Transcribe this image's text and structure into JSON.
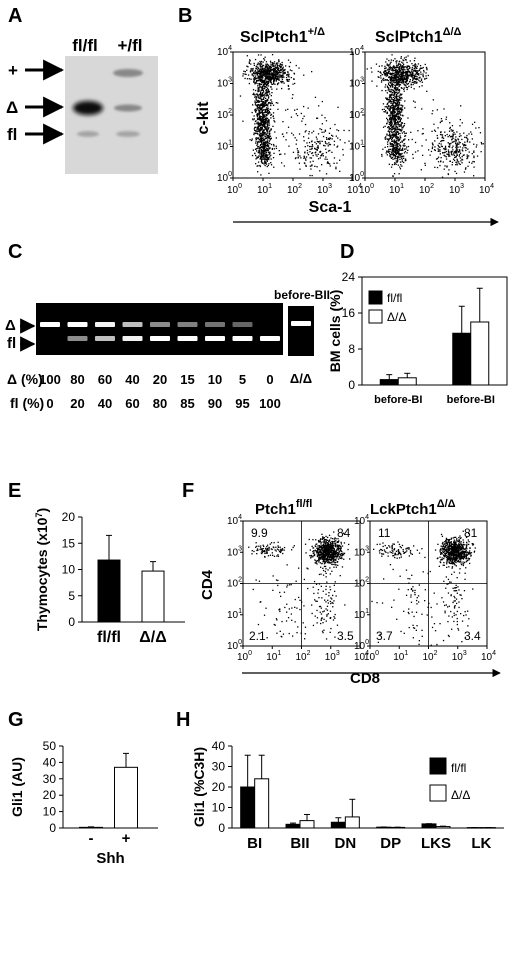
{
  "panel_letters": {
    "A": "A",
    "B": "B",
    "C": "C",
    "D": "D",
    "E": "E",
    "F": "F",
    "G": "G",
    "H": "H"
  },
  "panelA": {
    "lanes": [
      "fl/fl",
      "+/fl"
    ],
    "band_labels": [
      "+",
      "Δ",
      "fl"
    ]
  },
  "panelB": {
    "titles": [
      {
        "base": "SclPtch1",
        "sup": "+/Δ"
      },
      {
        "base": "SclPtch1",
        "sup": "Δ/Δ"
      }
    ],
    "ylabel": "c-kit",
    "xlabel": "Sca-1",
    "ticks": {
      "exp10": "10",
      "exps": [
        "0",
        "1",
        "2",
        "3",
        "4"
      ]
    }
  },
  "panelC": {
    "gel_labels": [
      "Δ",
      "fl"
    ],
    "extra_label": "before-BII",
    "extra_lane": "Δ/Δ",
    "row1_label": "Δ (%)",
    "row1": [
      "100",
      "80",
      "60",
      "40",
      "20",
      "15",
      "10",
      "5",
      "0"
    ],
    "row2_label": "fl (%)",
    "row2": [
      "0",
      "20",
      "40",
      "60",
      "80",
      "85",
      "90",
      "95",
      "100"
    ]
  },
  "panelF": {
    "titles": [
      {
        "base": "Ptch1",
        "sup": "fl/fl"
      },
      {
        "base": "LckPtch1",
        "sup": "Δ/Δ"
      }
    ],
    "ylabel": "CD4",
    "xlabel": "CD8",
    "quadrants": [
      {
        "ul": "9.9",
        "ur": "84",
        "ll": "2.1",
        "lr": "3.5"
      },
      {
        "ul": "11",
        "ur": "81",
        "ll": "3.7",
        "lr": "3.4"
      }
    ]
  },
  "chart_data": [
    {
      "panel": "D",
      "type": "bar",
      "ylabel": "BM cells (%)",
      "ylim": [
        0,
        24
      ],
      "yticks": [
        "0",
        "8",
        "16",
        "24"
      ],
      "categories": [
        "before-BI",
        "before-BI"
      ],
      "series": [
        {
          "name": "fl/fl",
          "values": [
            1.2,
            11.5
          ],
          "errors": [
            1.1,
            6
          ]
        },
        {
          "name": "Δ/Δ",
          "values": [
            1.6,
            14
          ],
          "errors": [
            1.0,
            7.5
          ]
        }
      ],
      "legend": "top-left"
    },
    {
      "panel": "E",
      "type": "bar",
      "ylabel": "Thymocytes (x10",
      "ylabel_sup": "7",
      "ylabel_end": ")",
      "ylim": [
        0,
        20
      ],
      "yticks": [
        "0",
        "5",
        "10",
        "15",
        "20"
      ],
      "categories": [
        "fl/fl",
        "Δ/Δ"
      ],
      "values": [
        11.8,
        9.7
      ],
      "errors": [
        4.7,
        1.8
      ]
    },
    {
      "panel": "G",
      "type": "bar",
      "ylabel": "Gli1 (AU)",
      "xlabel": "Shh",
      "ylim": [
        0,
        50
      ],
      "yticks": [
        "0",
        "10",
        "20",
        "30",
        "40",
        "50"
      ],
      "categories": [
        "-",
        "+"
      ],
      "values": [
        0.4,
        37
      ],
      "errors": [
        0.3,
        8.5
      ]
    },
    {
      "panel": "H",
      "type": "bar",
      "ylabel": "Gli1 (%C3H)",
      "ylim": [
        0,
        40
      ],
      "yticks": [
        "0",
        "10",
        "20",
        "30",
        "40"
      ],
      "categories": [
        "BI",
        "BII",
        "DN",
        "DP",
        "LKS",
        "LK"
      ],
      "series": [
        {
          "name": "fl/fl",
          "values": [
            20,
            1.8,
            2.8,
            0.4,
            2.0,
            0.2
          ],
          "errors": [
            15.5,
            0.6,
            2.2,
            0.1,
            0.1,
            0.05
          ]
        },
        {
          "name": "Δ/Δ",
          "values": [
            24,
            3.6,
            5.4,
            0.3,
            0.7,
            0.2
          ],
          "errors": [
            11.5,
            3.0,
            8.6,
            0.1,
            0.2,
            0.05
          ]
        }
      ],
      "legend": "top-right"
    }
  ]
}
